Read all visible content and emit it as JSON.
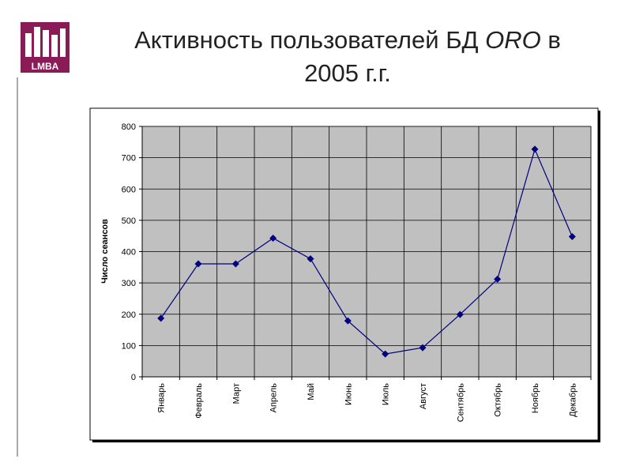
{
  "slide": {
    "title_part1": "Активность пользователей БД ",
    "title_italic": "ORO",
    "title_part2": " в",
    "title_line2": "2005 г.г."
  },
  "logo": {
    "text": "LMBA",
    "color": "#8b1b57"
  },
  "chart_data": {
    "type": "line",
    "title": "",
    "xlabel": "",
    "ylabel": "Число сеансов",
    "ylim": [
      0,
      800
    ],
    "yticks": [
      0,
      100,
      200,
      300,
      400,
      500,
      600,
      700,
      800
    ],
    "grid": true,
    "legend": "none",
    "plot_background": "#c0c0c0",
    "line_color": "#000080",
    "categories": [
      "Январь",
      "Февраль",
      "Март",
      "Апрель",
      "Май",
      "Июнь",
      "Июль",
      "Август",
      "Сентябрь",
      "Октябрь",
      "Ноябрь",
      "Декабрь"
    ],
    "series": [
      {
        "values": [
          187,
          361,
          361,
          443,
          377,
          179,
          73,
          93,
          199,
          312,
          727,
          448
        ]
      }
    ]
  }
}
